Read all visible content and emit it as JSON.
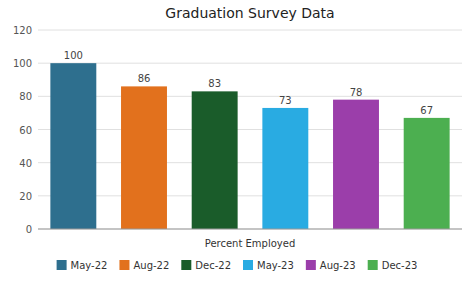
{
  "chart_data": {
    "type": "bar",
    "title": "Graduation Survey Data",
    "xlabel": "Percent Employed",
    "categories": [
      "May-22",
      "Aug-22",
      "Dec-22",
      "May-23",
      "Aug-23",
      "Dec-23"
    ],
    "values": [
      100,
      86,
      83,
      73,
      78,
      67
    ],
    "colors": [
      "#2e6f8e",
      "#e2711d",
      "#1a5c2a",
      "#29abe2",
      "#9b3eaa",
      "#4caf50"
    ],
    "ylim": [
      0,
      120
    ],
    "yticks": [
      0,
      20,
      40,
      60,
      80,
      100,
      120
    ],
    "grid": true,
    "data_labels": true,
    "legend": "bottom",
    "tick_labels": "y"
  }
}
